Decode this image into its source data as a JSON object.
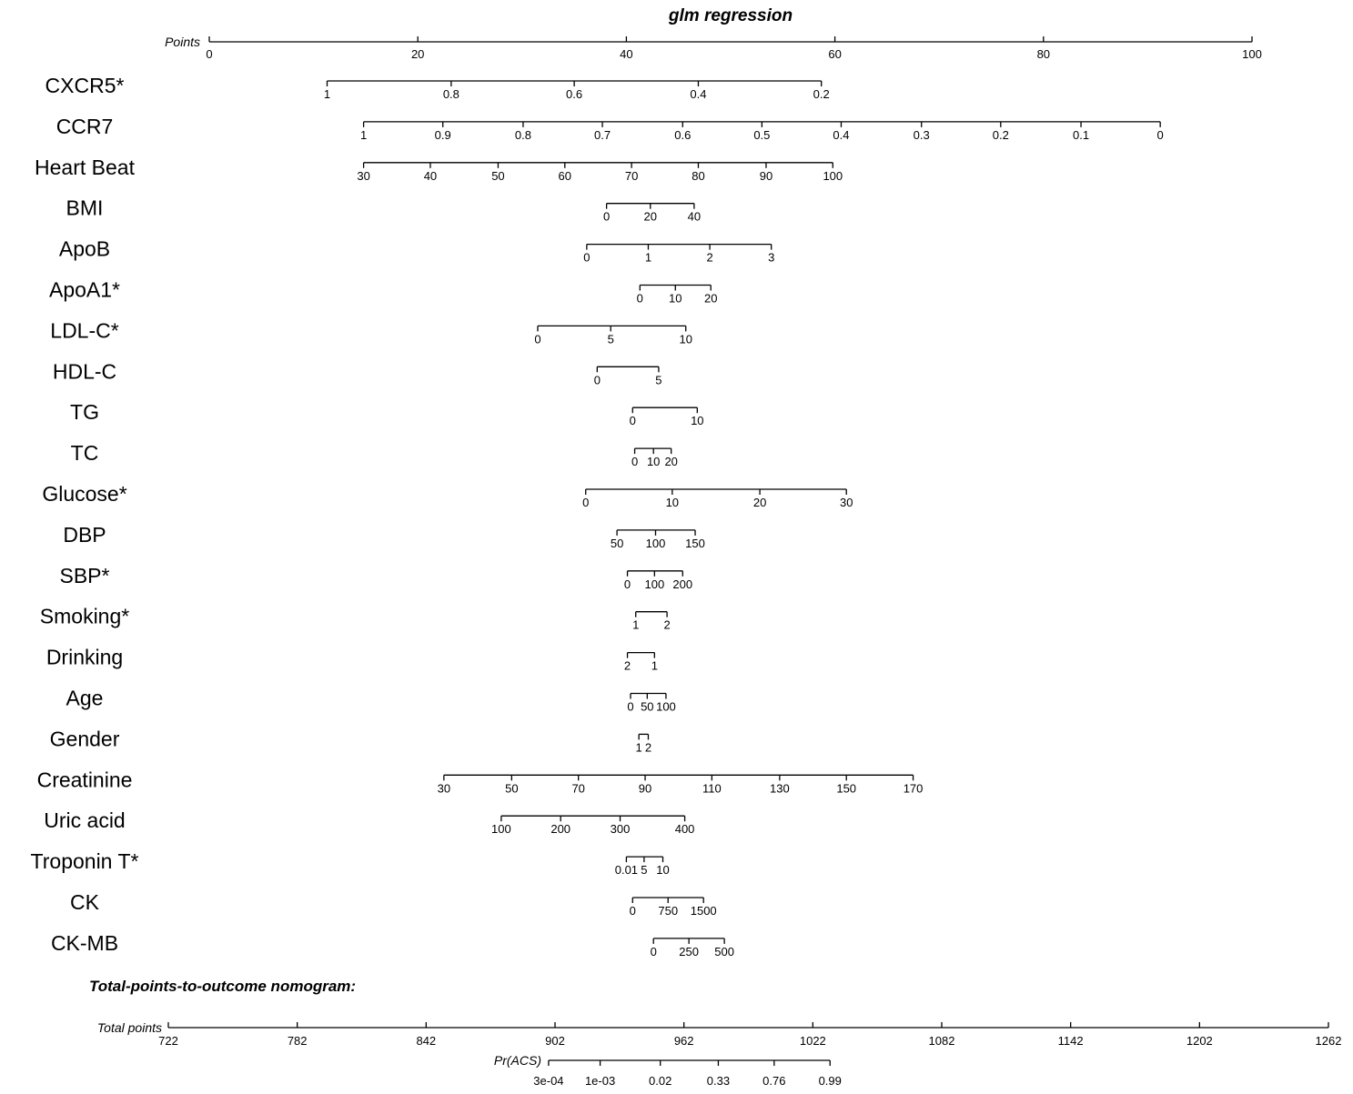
{
  "chart_data": {
    "type": "nomogram",
    "title": "glm regression",
    "points_axis": {
      "label": "Points",
      "ticks": [
        "0",
        "20",
        "40",
        "60",
        "80",
        "100"
      ],
      "range": [
        0,
        100
      ]
    },
    "variables": [
      {
        "name": "CXCR5*",
        "ticks": [
          {
            "label": "1",
            "points": 11.3
          },
          {
            "label": "0.8",
            "points": 23.2
          },
          {
            "label": "0.6",
            "points": 35.0
          },
          {
            "label": "0.4",
            "points": 46.9
          },
          {
            "label": "0.2",
            "points": 58.7
          }
        ]
      },
      {
        "name": "CCR7",
        "ticks": [
          {
            "label": "1",
            "points": 14.8
          },
          {
            "label": "0.9",
            "points": 22.4
          },
          {
            "label": "0.8",
            "points": 30.1
          },
          {
            "label": "0.7",
            "points": 37.7
          },
          {
            "label": "0.6",
            "points": 45.4
          },
          {
            "label": "0.5",
            "points": 53.0
          },
          {
            "label": "0.4",
            "points": 60.6
          },
          {
            "label": "0.3",
            "points": 68.3
          },
          {
            "label": "0.2",
            "points": 75.9
          },
          {
            "label": "0.1",
            "points": 83.6
          },
          {
            "label": "0",
            "points": 91.2
          }
        ]
      },
      {
        "name": "Heart Beat",
        "ticks": [
          {
            "label": "30",
            "points": 14.8
          },
          {
            "label": "40",
            "points": 21.2
          },
          {
            "label": "50",
            "points": 27.7
          },
          {
            "label": "60",
            "points": 34.1
          },
          {
            "label": "70",
            "points": 40.5
          },
          {
            "label": "80",
            "points": 46.9
          },
          {
            "label": "90",
            "points": 53.4
          },
          {
            "label": "100",
            "points": 59.8
          }
        ]
      },
      {
        "name": "BMI",
        "ticks": [
          {
            "label": "0",
            "points": 38.1
          },
          {
            "label": "20",
            "points": 42.3
          },
          {
            "label": "40",
            "points": 46.5
          }
        ]
      },
      {
        "name": "ApoB",
        "ticks": [
          {
            "label": "0",
            "points": 36.2
          },
          {
            "label": "1",
            "points": 42.1
          },
          {
            "label": "2",
            "points": 48.0
          },
          {
            "label": "3",
            "points": 53.9
          }
        ]
      },
      {
        "name": "ApoA1*",
        "ticks": [
          {
            "label": "0",
            "points": 41.3
          },
          {
            "label": "10",
            "points": 44.7
          },
          {
            "label": "20",
            "points": 48.1
          }
        ]
      },
      {
        "name": "LDL-C*",
        "ticks": [
          {
            "label": "0",
            "points": 31.5
          },
          {
            "label": "5",
            "points": 38.5
          },
          {
            "label": "10",
            "points": 45.7
          }
        ]
      },
      {
        "name": "HDL-C",
        "ticks": [
          {
            "label": "0",
            "points": 37.2
          },
          {
            "label": "5",
            "points": 43.1
          }
        ]
      },
      {
        "name": "TG",
        "ticks": [
          {
            "label": "0",
            "points": 40.6
          },
          {
            "label": "10",
            "points": 46.8
          }
        ]
      },
      {
        "name": "TC",
        "ticks": [
          {
            "label": "0",
            "points": 40.8
          },
          {
            "label": "10",
            "points": 42.6
          },
          {
            "label": "20",
            "points": 44.3
          }
        ]
      },
      {
        "name": "Glucose*",
        "ticks": [
          {
            "label": "0",
            "points": 36.1
          },
          {
            "label": "10",
            "points": 44.4
          },
          {
            "label": "20",
            "points": 52.8
          },
          {
            "label": "30",
            "points": 61.1
          }
        ]
      },
      {
        "name": "DBP",
        "ticks": [
          {
            "label": "50",
            "points": 39.1
          },
          {
            "label": "100",
            "points": 42.8
          },
          {
            "label": "150",
            "points": 46.6
          }
        ]
      },
      {
        "name": "SBP*",
        "ticks": [
          {
            "label": "0",
            "points": 40.1
          },
          {
            "label": "100",
            "points": 42.7
          },
          {
            "label": "200",
            "points": 45.4
          }
        ]
      },
      {
        "name": "Smoking*",
        "ticks": [
          {
            "label": "1",
            "points": 40.9
          },
          {
            "label": "2",
            "points": 43.9
          }
        ]
      },
      {
        "name": "Drinking",
        "ticks": [
          {
            "label": "2",
            "points": 40.1
          },
          {
            "label": "1",
            "points": 42.7
          }
        ]
      },
      {
        "name": "Age",
        "ticks": [
          {
            "label": "0",
            "points": 40.4
          },
          {
            "label": "50",
            "points": 42.0
          },
          {
            "label": "100",
            "points": 43.8
          }
        ]
      },
      {
        "name": "Gender",
        "ticks": [
          {
            "label": "1",
            "points": 41.2
          },
          {
            "label": "2",
            "points": 42.1
          }
        ]
      },
      {
        "name": "Creatinine",
        "ticks": [
          {
            "label": "30",
            "points": 22.5
          },
          {
            "label": "50",
            "points": 29.0
          },
          {
            "label": "70",
            "points": 35.4
          },
          {
            "label": "90",
            "points": 41.8
          },
          {
            "label": "110",
            "points": 48.2
          },
          {
            "label": "130",
            "points": 54.7
          },
          {
            "label": "150",
            "points": 61.1
          },
          {
            "label": "170",
            "points": 67.5
          }
        ]
      },
      {
        "name": "Uric acid",
        "ticks": [
          {
            "label": "100",
            "points": 28.0
          },
          {
            "label": "200",
            "points": 33.7
          },
          {
            "label": "300",
            "points": 39.4
          },
          {
            "label": "400",
            "points": 45.6
          }
        ]
      },
      {
        "name": "Troponin T*",
        "ticks": [
          {
            "label": "0.01",
            "points": 40.0
          },
          {
            "label": "5",
            "points": 41.7
          },
          {
            "label": "10",
            "points": 43.5
          }
        ]
      },
      {
        "name": "CK",
        "ticks": [
          {
            "label": "0",
            "points": 40.6
          },
          {
            "label": "750",
            "points": 44.0
          },
          {
            "label": "1500",
            "points": 47.4
          }
        ]
      },
      {
        "name": "CK-MB",
        "ticks": [
          {
            "label": "0",
            "points": 42.6
          },
          {
            "label": "250",
            "points": 46.0
          },
          {
            "label": "500",
            "points": 49.4
          }
        ]
      }
    ],
    "section_title": "Total-points-to-outcome nomogram:",
    "total_points_axis": {
      "label": "Total points",
      "ticks": [
        "722",
        "782",
        "842",
        "902",
        "962",
        "1022",
        "1082",
        "1142",
        "1202",
        "1262"
      ],
      "range": [
        722,
        1262
      ]
    },
    "outcome_axis": {
      "label": "Pr(ACS)",
      "ticks": [
        {
          "label": "3e-04",
          "total_points": 899
        },
        {
          "label": "1e-03",
          "total_points": 923
        },
        {
          "label": "0.02",
          "total_points": 951
        },
        {
          "label": "0.33",
          "total_points": 978
        },
        {
          "label": "0.76",
          "total_points": 1004
        },
        {
          "label": "0.99",
          "total_points": 1030
        }
      ]
    }
  }
}
